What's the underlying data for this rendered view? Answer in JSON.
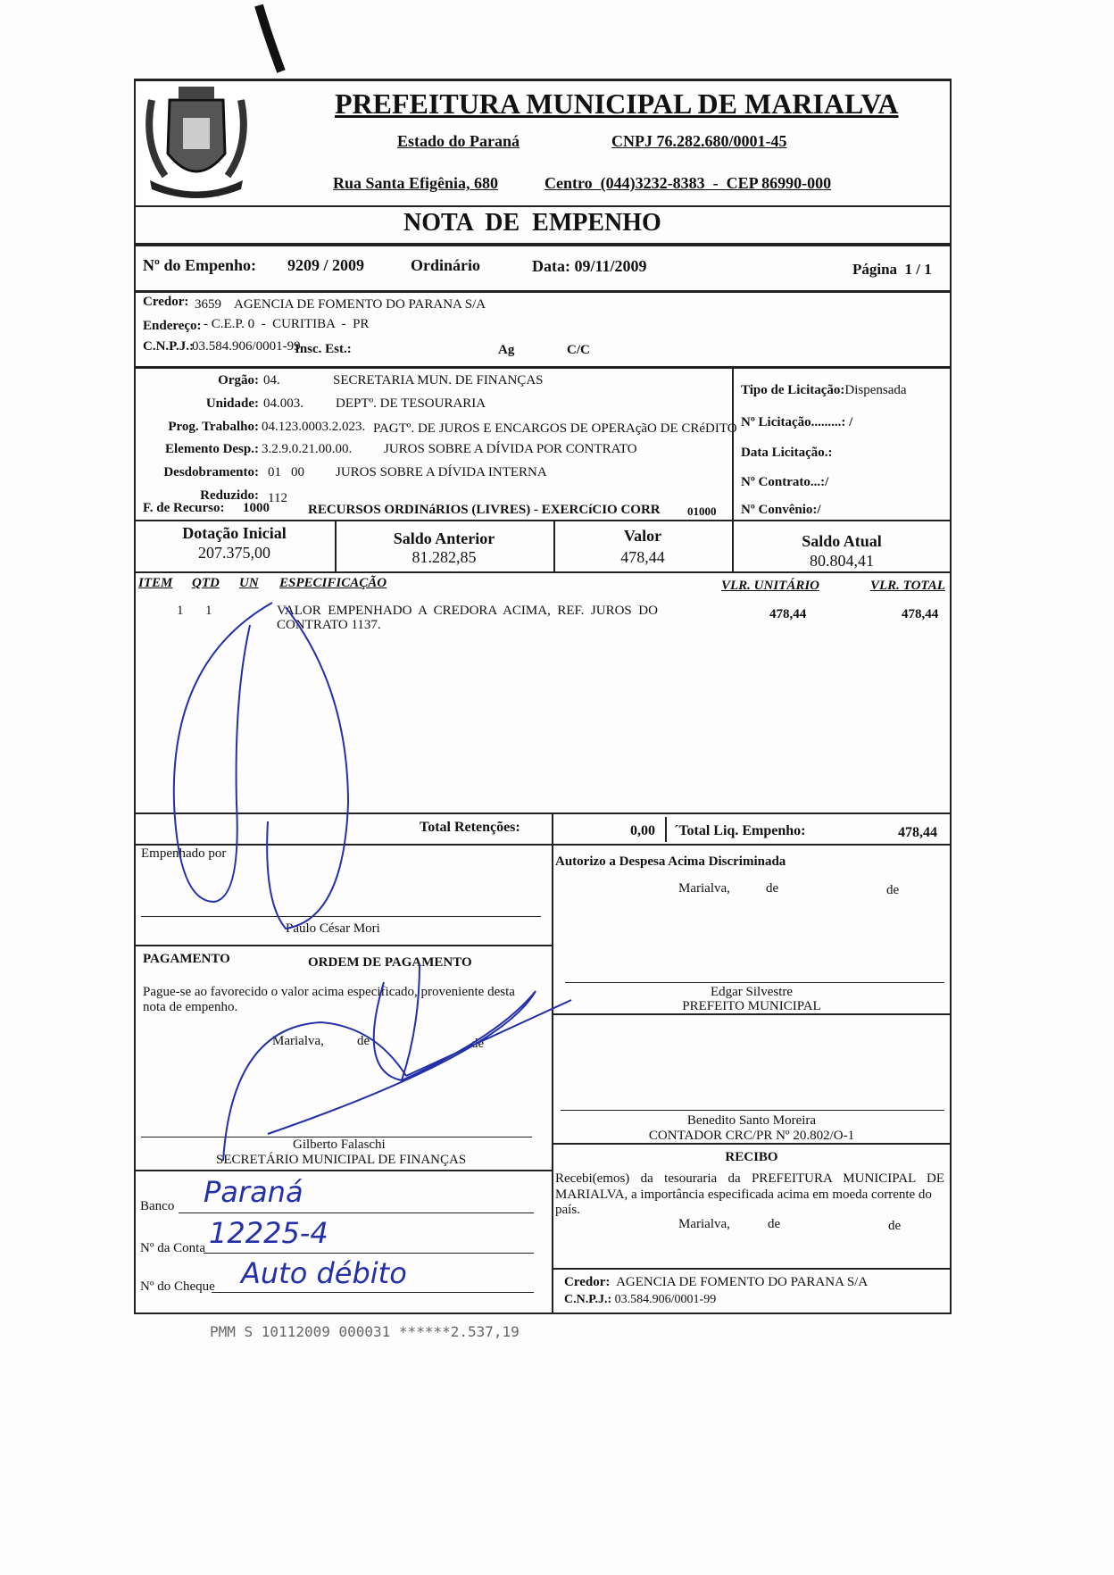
{
  "header": {
    "title": "PREFEITURA MUNICIPAL DE MARIALVA",
    "state": "Estado do Paraná",
    "cnpj": "CNPJ 76.282.680/0001-45",
    "address": "Rua Santa Efigênia, 680",
    "contact": "Centro  (044)3232-8383  -  CEP 86990-000",
    "doc_title": "NOTA  DE  EMPENHO"
  },
  "empenho": {
    "label": "Nº do Empenho:",
    "number": "9209 / 2009",
    "type": "Ordinário",
    "date": "Data: 09/11/2009",
    "page": "Página  1 / 1"
  },
  "credor": {
    "label": "Credor:",
    "code": "3659",
    "name": "AGENCIA DE FOMENTO DO PARANA S/A",
    "address_label": "Endereço:",
    "address": "- C.E.P. 0  -  CURITIBA  -  PR",
    "cnpj_label": "C.N.P.J.:",
    "cnpj": "03.584.906/0001-99",
    "insc_label": "Insc. Est.:",
    "ag_label": "Ag",
    "cc_label": "C/C"
  },
  "orcamento": {
    "orgao_label": "Orgão:",
    "orgao_code": "04.",
    "orgao": "SECRETARIA MUN. DE FINANÇAS",
    "unidade_label": "Unidade:",
    "unidade_code": "04.003.",
    "unidade": "DEPTº. DE TESOURARIA",
    "prog_label": "Prog. Trabalho:",
    "prog_code": "04.123.0003.2.023.",
    "prog": "PAGTº. DE JUROS E ENCARGOS DE OPERAçãO DE CRéDITO",
    "elem_label": "Elemento Desp.:",
    "elem_code": "3.2.9.0.21.00.00.",
    "elem": "JUROS SOBRE A DÍVIDA POR CONTRATO",
    "desd_label": "Desdobramento:",
    "desd_a": "01",
    "desd_b": "00",
    "desd": "JUROS SOBRE A DÍVIDA INTERNA",
    "red_label": "Reduzido:",
    "red": "112",
    "fonte_label": "F. de Recurso:",
    "fonte_code": "1000",
    "fonte": "RECURSOS ORDINáRIOS (LIVRES) - EXERCíCIO CORR",
    "fonte_num": "01000"
  },
  "licitacao": {
    "tipo": "Tipo de Licitação:",
    "tipo_val": "Dispensada",
    "num": "Nº Licitação.........: /",
    "data": "Data Licitação.:",
    "contrato": "Nº Contrato...:/",
    "convenio": "Nº Convênio:/"
  },
  "saldos": [
    {
      "label": "Dotação Inicial",
      "value": "207.375,00"
    },
    {
      "label": "Saldo Anterior",
      "value": "81.282,85"
    },
    {
      "label": "Valor",
      "value": "478,44"
    },
    {
      "label": "Saldo Atual",
      "value": "80.804,41"
    }
  ],
  "items": {
    "headers": {
      "item": "ITEM",
      "qtd": "QTD",
      "un": "UN",
      "spec": "ESPECIFICAÇÃO",
      "unit": "VLR. UNITÁRIO",
      "total": "VLR. TOTAL"
    },
    "rows": [
      {
        "item": "1",
        "qtd": "1",
        "spec1": "VALOR  EMPENHADO  A  CREDORA  ACIMA,  REF.  JUROS  DO",
        "spec2": "CONTRATO 1137.",
        "unit": "478,44",
        "total": "478,44"
      }
    ]
  },
  "totals": {
    "ret_label": "Total Retenções:",
    "ret": "0,00",
    "liq_label": "´Total Liq. Empenho:",
    "liq": "478,44"
  },
  "empenhado": {
    "label": "Empenhado por",
    "name": "Paulo César Mori"
  },
  "pagamento": {
    "label": "PAGAMENTO",
    "ordem": "ORDEM DE PAGAMENTO",
    "text1": "Pague-se ao favorecido o valor acima especificado, proveniente desta",
    "text2": "nota de empenho.",
    "place": "Marialva,",
    "de1": "de",
    "de2": "de",
    "name": "Gilberto Falaschi",
    "role": "SECRETÁRIO MUNICIPAL DE FINANÇAS"
  },
  "banco": {
    "banco_label": "Banco",
    "banco_val": "Paraná",
    "conta_label": "Nº da Conta",
    "conta_val": "12225-4",
    "cheque_label": "Nº do Cheque",
    "cheque_val": "Auto débito"
  },
  "autorizo": {
    "label": "Autorizo a Despesa Acima Discriminada",
    "place": "Marialva,",
    "de1": "de",
    "de2": "de",
    "name": "Edgar Silvestre",
    "role": "PREFEITO MUNICIPAL"
  },
  "contador": {
    "name": "Benedito Santo Moreira",
    "role": "CONTADOR CRC/PR Nº 20.802/O-1"
  },
  "recibo": {
    "label": "RECIBO",
    "text1": "Recebi(emos) da tesouraria da PREFEITURA MUNICIPAL DE",
    "text2": "MARIALVA, a importância especificada acima em moeda corrente do",
    "text3": "país.",
    "place": "Marialva,",
    "de1": "de",
    "de2": "de",
    "credor_label": "Credor:",
    "credor": "AGENCIA DE FOMENTO DO PARANA S/A",
    "cnpj_label": "C.N.P.J.:",
    "cnpj": "03.584.906/0001-99"
  },
  "stamp": "PMM S 10112009 000031 ******2.537,19"
}
